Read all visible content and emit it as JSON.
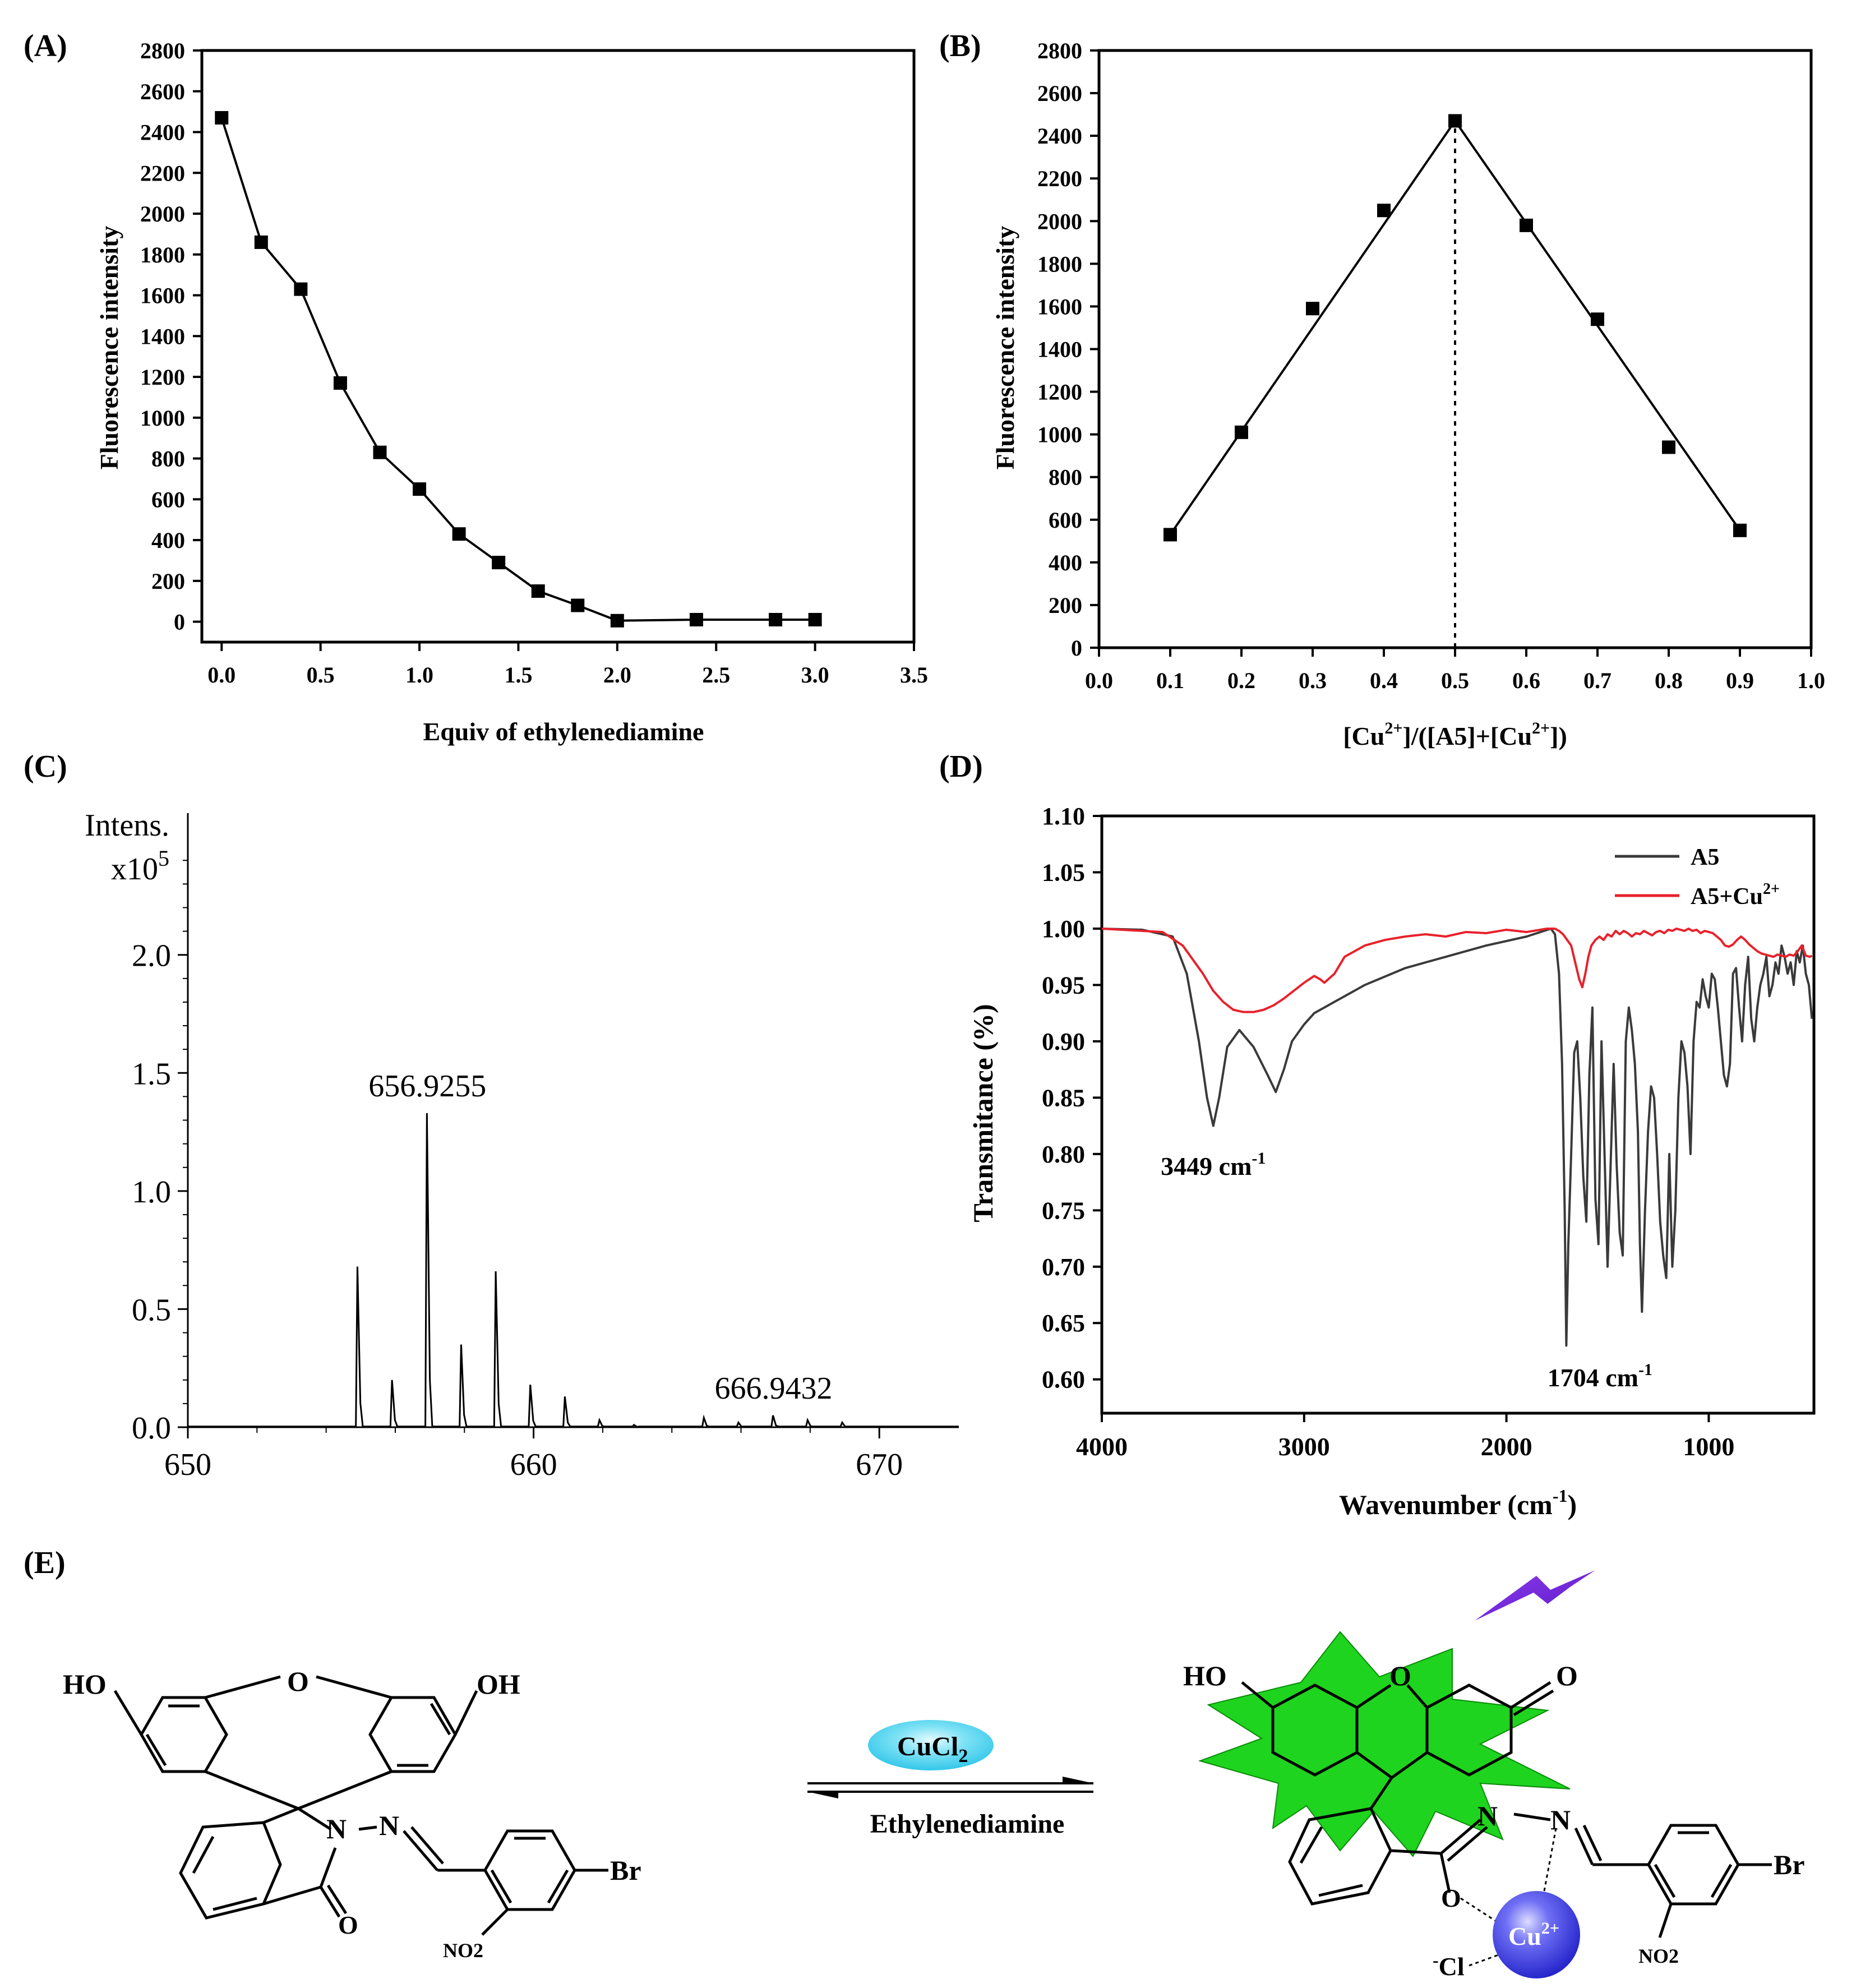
{
  "panels": {
    "a": {
      "label": "(A)"
    },
    "b": {
      "label": "(B)"
    },
    "c": {
      "label": "(C)"
    },
    "d": {
      "label": "(D)"
    },
    "e": {
      "label": "(E)"
    }
  },
  "chart_data": [
    {
      "id": "A",
      "type": "line",
      "xlabel": "Equiv of ethylenediamine",
      "ylabel": "Fluorescence intensity",
      "xlim": [
        -0.1,
        3.5
      ],
      "ylim": [
        -100,
        2800
      ],
      "xticks": [
        0.0,
        0.5,
        1.0,
        1.5,
        2.0,
        2.5,
        3.0,
        3.5
      ],
      "xtick_labels": [
        "0.0",
        "0.5",
        "1.0",
        "1.5",
        "2.0",
        "2.5",
        "3.0",
        "3.5"
      ],
      "yticks": [
        0,
        200,
        400,
        600,
        800,
        1000,
        1200,
        1400,
        1600,
        1800,
        2000,
        2200,
        2400,
        2600,
        2800
      ],
      "ytick_labels": [
        "0",
        "200",
        "400",
        "600",
        "800",
        "1000",
        "1200",
        "1400",
        "1600",
        "1800",
        "2000",
        "2200",
        "2400",
        "2600",
        "2800"
      ],
      "series": [
        {
          "x": [
            0.0,
            0.2,
            0.4,
            0.6,
            0.8,
            1.0,
            1.2,
            1.4,
            1.6,
            1.8,
            2.0,
            2.4,
            2.8,
            3.0
          ],
          "y": [
            2470,
            1860,
            1630,
            1170,
            830,
            650,
            430,
            290,
            150,
            80,
            5,
            10,
            10,
            10
          ],
          "color": "#000000",
          "marker": "square"
        }
      ]
    },
    {
      "id": "B",
      "type": "line",
      "xlabel": "[Cu2+]/([A5]+[Cu2+])",
      "xlabel_parts": {
        "p1": "[Cu",
        "s1": "2+",
        "p2": "]/([A5]+[Cu",
        "s2": "2+",
        "p3": "])"
      },
      "ylabel": "Fluorescence intensity",
      "xlim": [
        0.0,
        1.0
      ],
      "ylim": [
        0,
        2800
      ],
      "xticks": [
        0.0,
        0.1,
        0.2,
        0.3,
        0.4,
        0.5,
        0.6,
        0.7,
        0.8,
        0.9,
        1.0
      ],
      "xtick_labels": [
        "0.0",
        "0.1",
        "0.2",
        "0.3",
        "0.4",
        "0.5",
        "0.6",
        "0.7",
        "0.8",
        "0.9",
        "1.0"
      ],
      "yticks": [
        0,
        200,
        400,
        600,
        800,
        1000,
        1200,
        1400,
        1600,
        1800,
        2000,
        2200,
        2400,
        2600,
        2800
      ],
      "ytick_labels": [
        "0",
        "200",
        "400",
        "600",
        "800",
        "1000",
        "1200",
        "1400",
        "1600",
        "1800",
        "2000",
        "2200",
        "2400",
        "2600",
        "2800"
      ],
      "points": {
        "x": [
          0.1,
          0.2,
          0.3,
          0.4,
          0.5,
          0.6,
          0.7,
          0.8,
          0.9
        ],
        "y": [
          530,
          1010,
          1590,
          2050,
          2470,
          1980,
          1540,
          940,
          550
        ]
      },
      "fit_lines": [
        {
          "x": [
            0.1,
            0.5
          ],
          "y": [
            530,
            2470
          ]
        },
        {
          "x": [
            0.5,
            0.9
          ],
          "y": [
            2470,
            550
          ]
        }
      ],
      "vline": {
        "x": 0.5,
        "y": [
          0,
          2470
        ],
        "style": "dotted"
      }
    },
    {
      "id": "C",
      "type": "line",
      "title_lines": [
        "Intens.",
        "x10"
      ],
      "title_exp": "5",
      "xlim": [
        650,
        672.3
      ],
      "ylim": [
        -0.02,
        2.6
      ],
      "xticks": [
        650,
        660,
        670
      ],
      "xtick_labels": [
        "650",
        "660",
        "670"
      ],
      "yticks": [
        0.0,
        0.5,
        1.0,
        1.5,
        2.0
      ],
      "ytick_labels": [
        "0.0",
        "0.5",
        "1.0",
        "1.5",
        "2.0"
      ],
      "peaks": {
        "x": [
          654.92,
          655.92,
          656.93,
          657.92,
          658.92,
          659.92,
          660.92,
          661.92,
          662.92,
          664.94,
          665.94,
          666.94,
          667.94,
          668.94
        ],
        "y": [
          0.68,
          0.2,
          1.33,
          0.35,
          0.66,
          0.18,
          0.13,
          0.03,
          0.01,
          0.04,
          0.02,
          0.05,
          0.03,
          0.02
        ]
      },
      "annotations": [
        {
          "text": "656.9255",
          "x": 656.93,
          "y": 1.33
        },
        {
          "text": "666.9432",
          "x": 666.94,
          "y": 0.05
        }
      ],
      "color": "#000000"
    },
    {
      "id": "D",
      "type": "line",
      "xlabel": "Wavenumber (cm-1)",
      "xlabel_parts": {
        "p1": "Wavenumber (cm",
        "s1": "-1",
        "p2": ")"
      },
      "ylabel": "Transmitance (%)",
      "xlim": [
        4000,
        480
      ],
      "ylim": [
        0.57,
        1.1
      ],
      "xticks": [
        4000,
        3000,
        2000,
        1000
      ],
      "xtick_labels": [
        "4000",
        "3000",
        "2000",
        "1000"
      ],
      "yticks": [
        0.6,
        0.65,
        0.7,
        0.75,
        0.8,
        0.85,
        0.9,
        0.95,
        1.0,
        1.05,
        1.1
      ],
      "ytick_labels": [
        "0.60",
        "0.65",
        "0.70",
        "0.75",
        "0.80",
        "0.85",
        "0.90",
        "0.95",
        "1.00",
        "1.05",
        "1.10"
      ],
      "legend": "top-right",
      "series": [
        {
          "name": "A5",
          "color": "#3a3a3a",
          "x": [
            4000,
            3800,
            3650,
            3580,
            3520,
            3480,
            3449,
            3420,
            3380,
            3320,
            3250,
            3180,
            3140,
            3100,
            3060,
            3000,
            2950,
            2900,
            2850,
            2700,
            2500,
            2300,
            2100,
            1900,
            1780,
            1760,
            1740,
            1725,
            1712,
            1704,
            1694,
            1680,
            1665,
            1650,
            1635,
            1620,
            1605,
            1590,
            1575,
            1560,
            1545,
            1530,
            1515,
            1500,
            1485,
            1470,
            1455,
            1440,
            1425,
            1410,
            1395,
            1380,
            1365,
            1350,
            1340,
            1330,
            1315,
            1300,
            1285,
            1270,
            1255,
            1240,
            1225,
            1210,
            1195,
            1180,
            1165,
            1150,
            1135,
            1120,
            1105,
            1090,
            1075,
            1060,
            1045,
            1030,
            1015,
            1000,
            985,
            970,
            955,
            940,
            925,
            910,
            895,
            880,
            865,
            850,
            835,
            820,
            805,
            790,
            775,
            760,
            745,
            730,
            715,
            700,
            685,
            670,
            655,
            640,
            625,
            610,
            595,
            580,
            565,
            550,
            535,
            520,
            505,
            490
          ],
          "y": [
            1.0,
            0.999,
            0.993,
            0.96,
            0.9,
            0.85,
            0.825,
            0.85,
            0.895,
            0.91,
            0.895,
            0.87,
            0.855,
            0.875,
            0.9,
            0.915,
            0.925,
            0.93,
            0.935,
            0.95,
            0.965,
            0.975,
            0.985,
            0.993,
            1.0,
            0.995,
            0.96,
            0.88,
            0.75,
            0.63,
            0.72,
            0.8,
            0.89,
            0.9,
            0.85,
            0.78,
            0.74,
            0.87,
            0.93,
            0.76,
            0.72,
            0.9,
            0.8,
            0.7,
            0.79,
            0.88,
            0.79,
            0.73,
            0.71,
            0.9,
            0.93,
            0.91,
            0.88,
            0.82,
            0.72,
            0.66,
            0.75,
            0.82,
            0.86,
            0.85,
            0.8,
            0.74,
            0.71,
            0.69,
            0.8,
            0.7,
            0.75,
            0.85,
            0.9,
            0.89,
            0.86,
            0.8,
            0.9,
            0.935,
            0.93,
            0.955,
            0.94,
            0.93,
            0.96,
            0.955,
            0.93,
            0.9,
            0.87,
            0.86,
            0.88,
            0.96,
            0.965,
            0.93,
            0.9,
            0.95,
            0.975,
            0.92,
            0.9,
            0.93,
            0.95,
            0.96,
            0.975,
            0.94,
            0.95,
            0.97,
            0.96,
            0.985,
            0.975,
            0.96,
            0.97,
            0.95,
            0.98,
            0.97,
            0.985,
            0.96,
            0.95,
            0.92
          ]
        },
        {
          "name": "A5+Cu2+",
          "name_parts": {
            "p1": "A5+Cu",
            "s1": "2+"
          },
          "color": "#e8212b",
          "x": [
            4000,
            3700,
            3600,
            3500,
            3450,
            3400,
            3350,
            3300,
            3250,
            3200,
            3150,
            3100,
            3050,
            3000,
            2950,
            2920,
            2900,
            2850,
            2800,
            2700,
            2600,
            2500,
            2400,
            2300,
            2200,
            2100,
            2000,
            1900,
            1800,
            1760,
            1740,
            1720,
            1700,
            1680,
            1660,
            1640,
            1625,
            1610,
            1595,
            1580,
            1560,
            1540,
            1520,
            1500,
            1480,
            1460,
            1440,
            1420,
            1400,
            1380,
            1360,
            1340,
            1320,
            1300,
            1280,
            1260,
            1240,
            1220,
            1200,
            1180,
            1160,
            1140,
            1120,
            1100,
            1080,
            1060,
            1040,
            1020,
            1000,
            980,
            960,
            940,
            920,
            900,
            880,
            860,
            840,
            820,
            800,
            780,
            760,
            740,
            720,
            700,
            680,
            660,
            640,
            620,
            600,
            580,
            560,
            540,
            520,
            500,
            490
          ],
          "y": [
            1.0,
            0.997,
            0.985,
            0.96,
            0.945,
            0.935,
            0.928,
            0.926,
            0.926,
            0.928,
            0.932,
            0.938,
            0.945,
            0.952,
            0.958,
            0.955,
            0.952,
            0.96,
            0.975,
            0.985,
            0.99,
            0.993,
            0.995,
            0.993,
            0.997,
            0.996,
            0.999,
            0.997,
            1.0,
            1.0,
            0.998,
            0.995,
            0.99,
            0.985,
            0.97,
            0.955,
            0.948,
            0.96,
            0.975,
            0.985,
            0.99,
            0.993,
            0.99,
            0.995,
            0.993,
            0.998,
            0.995,
            0.998,
            0.996,
            0.993,
            0.996,
            0.995,
            0.998,
            0.996,
            0.994,
            0.997,
            0.998,
            0.996,
            0.999,
            0.998,
            1.0,
            0.999,
            0.998,
            1.0,
            0.998,
            0.999,
            0.996,
            0.998,
            0.997,
            0.996,
            0.993,
            0.99,
            0.985,
            0.984,
            0.986,
            0.99,
            0.993,
            0.99,
            0.986,
            0.983,
            0.98,
            0.978,
            0.977,
            0.976,
            0.975,
            0.977,
            0.976,
            0.975,
            0.977,
            0.976,
            0.98,
            0.985,
            0.976,
            0.975,
            0.976
          ]
        }
      ],
      "annotations": [
        {
          "text": "3449 cm",
          "sup": "-1",
          "x": 3449
        },
        {
          "text": "1704 cm",
          "sup": "-1",
          "x": 1704
        }
      ]
    }
  ],
  "scheme": {
    "left_molecule": {
      "ho": "HO",
      "oh": "OH",
      "o_ring": "O",
      "n1": "N",
      "n2": "N",
      "o_carbonyl": "O",
      "br": "Br",
      "no2": "NO2"
    },
    "right_molecule": {
      "ho": "HO",
      "o_ring": "O",
      "o_keto": "O",
      "n1": "N",
      "n2": "N",
      "o_coord": "O",
      "cl": "Cl",
      "cl_charge": "-",
      "cu": "Cu",
      "cu_charge": "2+",
      "br": "Br",
      "no2": "NO2"
    },
    "reagent_top": "CuCl",
    "reagent_top_sub": "2",
    "reagent_bottom": "Ethylenediamine",
    "colors": {
      "reagent_pill": "#5fd8f0",
      "fluorescence_star": "#1ed41e",
      "copper_sphere": "#2f2fe6",
      "lightning": "#7a28e0"
    }
  }
}
